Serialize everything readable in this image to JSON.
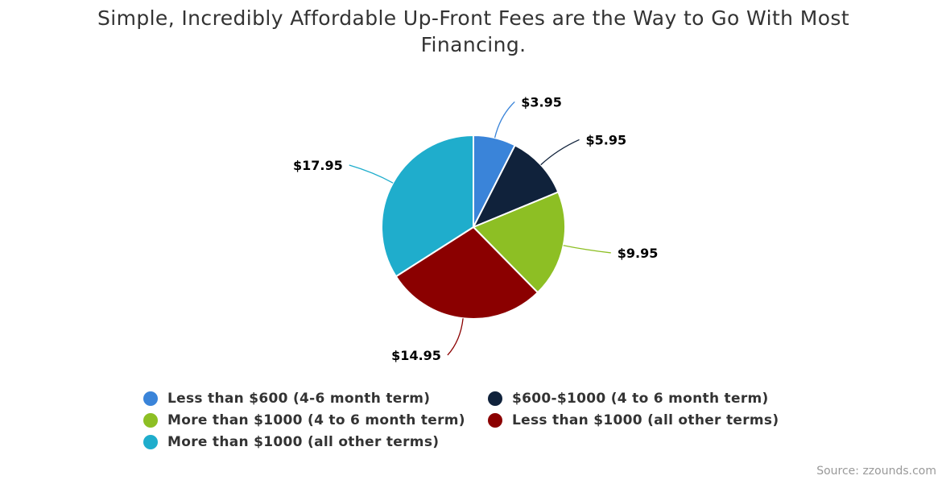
{
  "title": "Simple, Incredibly Affordable Up-Front Fees are the Way to Go With Most Financing.",
  "chart_data": {
    "type": "pie",
    "title": "Simple, Incredibly Affordable Up-Front Fees are the Way to Go With Most Financing.",
    "slices": [
      {
        "name": "Less than $600 (4-6 month term)",
        "value": 3.95,
        "label": "$3.95",
        "color": "#3a84d9"
      },
      {
        "name": "$600-$1000 (4 to 6 month term)",
        "value": 5.95,
        "label": "$5.95",
        "color": "#10223b"
      },
      {
        "name": "More than $1000 (4 to 6 month term)",
        "value": 9.95,
        "label": "$9.95",
        "color": "#8dbf24"
      },
      {
        "name": "Less than $1000 (all other terms)",
        "value": 14.95,
        "label": "$14.95",
        "color": "#8b0000"
      },
      {
        "name": "More than $1000 (all other terms)",
        "value": 17.95,
        "label": "$17.95",
        "color": "#1fadcc"
      }
    ],
    "legend_position": "bottom"
  },
  "source": "Source: zzounds.com"
}
